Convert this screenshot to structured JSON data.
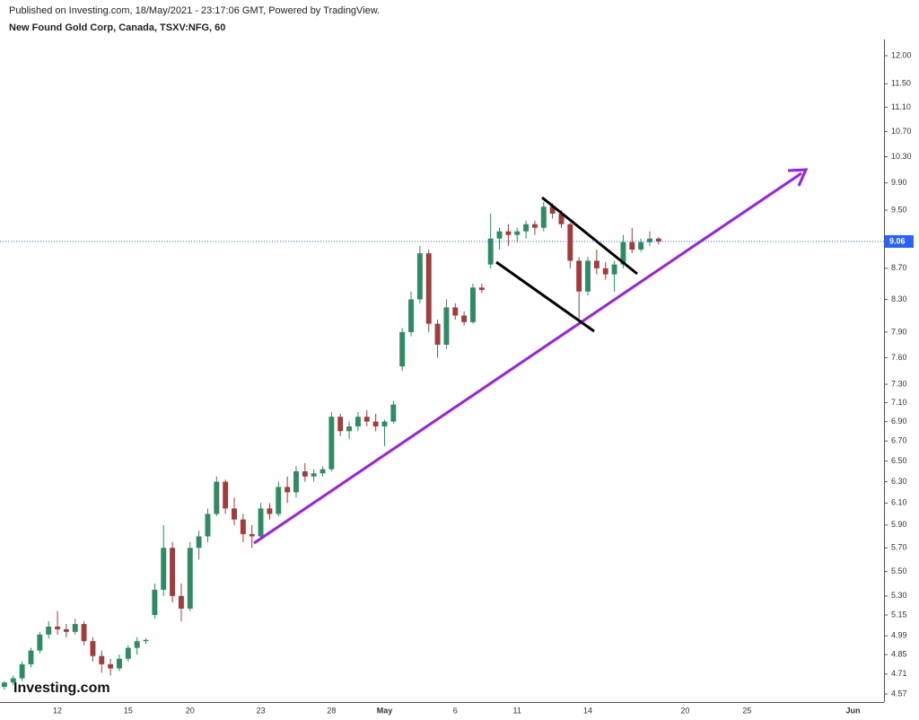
{
  "header": {
    "published": "Published on Investing.com, 18/May/2021 - 23:17:06 GMT, Powered by TradingView.",
    "symbol": "New Found Gold Corp, Canada, TSXV:NFG, 60"
  },
  "chart_data": {
    "type": "candlestick",
    "log_scale": true,
    "watermark": "Investing.com",
    "up_color": "#2e8b62",
    "down_color": "#a33b3b",
    "last_price": 9.06,
    "last_price_color": "#2962ff",
    "categories": [
      null,
      null,
      null,
      null,
      null,
      null,
      "12",
      null,
      null,
      null,
      null,
      null,
      null,
      null,
      "15",
      null,
      null,
      null,
      null,
      null,
      null,
      "20",
      null,
      null,
      null,
      null,
      null,
      null,
      null,
      "23",
      null,
      null,
      null,
      null,
      null,
      null,
      null,
      "28",
      null,
      null,
      null,
      null,
      null,
      "May",
      null,
      null,
      null,
      null,
      null,
      null,
      null,
      "6",
      null,
      null,
      null,
      null,
      null,
      null,
      "11",
      null,
      null,
      null,
      null,
      null,
      null,
      null,
      "14",
      null,
      null,
      null,
      null,
      null,
      null,
      null,
      null,
      null,
      null,
      "20",
      null,
      null,
      null,
      null,
      null,
      null,
      "25",
      null,
      null,
      null,
      null,
      null,
      null,
      null,
      null,
      null,
      null,
      null,
      "Jun",
      null,
      null,
      null
    ],
    "open": [
      4.62,
      4.65,
      4.68,
      4.78,
      4.88,
      5.0,
      5.06,
      5.04,
      5.02,
      5.08,
      4.95,
      4.84,
      4.78,
      4.75,
      4.82,
      4.9,
      4.95,
      5.15,
      5.35,
      5.7,
      5.3,
      5.2,
      5.7,
      5.8,
      6.0,
      6.3,
      6.05,
      5.95,
      5.82,
      5.8,
      6.05,
      6.0,
      6.25,
      6.2,
      6.4,
      6.35,
      6.38,
      6.42,
      6.95,
      6.8,
      6.85,
      6.95,
      6.9,
      6.85,
      6.9,
      7.5,
      7.9,
      8.3,
      8.9,
      8.0,
      7.75,
      8.2,
      8.1,
      8.02,
      8.45,
      8.75,
      9.1,
      9.2,
      9.15,
      9.2,
      9.3,
      9.25,
      9.55,
      9.45,
      9.3,
      8.8,
      8.4,
      8.8,
      8.7,
      8.62,
      8.75,
      9.05,
      8.95,
      9.05,
      9.1,
      null,
      null,
      null,
      null,
      null,
      null,
      null,
      null,
      null,
      null,
      null,
      null,
      null,
      null,
      null,
      null,
      null,
      null,
      null,
      null,
      null,
      null,
      null,
      null,
      null
    ],
    "high": [
      4.66,
      4.7,
      4.8,
      4.9,
      5.02,
      5.1,
      5.18,
      5.08,
      5.12,
      5.1,
      4.98,
      4.88,
      4.82,
      4.85,
      4.92,
      4.98,
      4.97,
      5.4,
      5.9,
      5.75,
      5.4,
      5.75,
      5.85,
      6.05,
      6.35,
      6.32,
      6.15,
      6.0,
      5.9,
      6.1,
      6.1,
      6.3,
      6.35,
      6.45,
      6.48,
      6.42,
      6.45,
      7.0,
      6.98,
      6.9,
      7.0,
      7.02,
      6.98,
      6.92,
      7.12,
      7.95,
      8.4,
      9.0,
      8.95,
      8.05,
      8.3,
      8.25,
      8.15,
      8.5,
      8.5,
      9.45,
      9.25,
      9.3,
      9.25,
      9.35,
      9.35,
      9.62,
      9.6,
      9.5,
      9.32,
      8.85,
      8.85,
      8.95,
      8.78,
      8.8,
      9.15,
      9.25,
      9.1,
      9.2,
      9.12,
      null,
      null,
      null,
      null,
      null,
      null,
      null,
      null,
      null,
      null,
      null,
      null,
      null,
      null,
      null,
      null,
      null,
      null,
      null,
      null,
      null,
      null,
      null,
      null,
      null
    ],
    "low": [
      4.6,
      4.63,
      4.66,
      4.76,
      4.86,
      4.97,
      5.0,
      4.98,
      5.0,
      4.92,
      4.8,
      4.72,
      4.7,
      4.73,
      4.8,
      4.85,
      4.93,
      5.12,
      5.3,
      5.25,
      5.1,
      5.18,
      5.6,
      5.75,
      5.98,
      6.0,
      5.9,
      5.75,
      5.7,
      5.78,
      5.95,
      5.98,
      6.1,
      6.15,
      6.3,
      6.3,
      6.35,
      6.4,
      6.75,
      6.72,
      6.8,
      6.85,
      6.8,
      6.65,
      6.88,
      7.45,
      7.85,
      8.25,
      7.9,
      7.6,
      7.7,
      8.05,
      7.98,
      8.0,
      8.38,
      8.7,
      8.95,
      9.0,
      9.05,
      9.1,
      9.15,
      9.2,
      9.38,
      9.25,
      8.7,
      8.05,
      8.35,
      8.62,
      8.55,
      8.4,
      8.7,
      8.9,
      8.92,
      9.0,
      9.02,
      null,
      null,
      null,
      null,
      null,
      null,
      null,
      null,
      null,
      null,
      null,
      null,
      null,
      null,
      null,
      null,
      null,
      null,
      null,
      null,
      null,
      null,
      null,
      null,
      null
    ],
    "close": [
      4.65,
      4.68,
      4.78,
      4.88,
      5.0,
      5.06,
      5.04,
      5.02,
      5.08,
      4.95,
      4.84,
      4.78,
      4.75,
      4.82,
      4.9,
      4.95,
      4.96,
      5.35,
      5.7,
      5.3,
      5.2,
      5.7,
      5.8,
      6.0,
      6.3,
      6.05,
      5.95,
      5.82,
      5.8,
      6.05,
      6.0,
      6.25,
      6.2,
      6.4,
      6.35,
      6.38,
      6.42,
      6.95,
      6.8,
      6.85,
      6.95,
      6.9,
      6.85,
      6.9,
      7.08,
      7.9,
      8.3,
      8.9,
      8.0,
      7.75,
      8.2,
      8.1,
      8.02,
      8.45,
      8.42,
      9.1,
      9.2,
      9.15,
      9.2,
      9.3,
      9.25,
      9.55,
      9.45,
      9.3,
      8.8,
      8.4,
      8.8,
      8.7,
      8.62,
      8.75,
      9.05,
      8.95,
      9.05,
      9.1,
      9.06,
      null,
      null,
      null,
      null,
      null,
      null,
      null,
      null,
      null,
      null,
      null,
      null,
      null,
      null,
      null,
      null,
      null,
      null,
      null,
      null,
      null,
      null,
      null,
      null,
      null
    ],
    "ylim": [
      4.57,
      12.0
    ],
    "yticks": [
      4.57,
      4.71,
      4.85,
      4.99,
      5.15,
      {
        "value": 5.3,
        "label": "5.30"
      },
      {
        "value": 5.5,
        "label": "5.50"
      },
      {
        "value": 5.7,
        "label": "5.70"
      },
      {
        "value": 5.9,
        "label": "5.90"
      },
      {
        "value": 6.1,
        "label": "6.10"
      },
      {
        "value": 6.3,
        "label": "6.30"
      },
      {
        "value": 6.5,
        "label": "6.50"
      },
      {
        "value": 6.7,
        "label": "6.70"
      },
      {
        "value": 6.9,
        "label": "6.90"
      },
      {
        "value": 7.1,
        "label": "7.10"
      },
      {
        "value": 7.3,
        "label": "7.30"
      },
      {
        "value": 7.6,
        "label": "7.60"
      },
      {
        "value": 7.9,
        "label": "7.90"
      },
      {
        "value": 8.3,
        "label": "8.30"
      },
      {
        "value": 8.7,
        "label": "8.70"
      },
      {
        "value": 9.5,
        "label": "9.50"
      },
      {
        "value": 9.9,
        "label": "9.90"
      },
      {
        "value": 10.3,
        "label": "10.30"
      },
      {
        "value": 10.7,
        "label": "10.70"
      },
      {
        "value": 11.1,
        "label": "11.10"
      },
      {
        "value": 11.5,
        "label": "11.50"
      },
      {
        "value": 12,
        "label": "12.00"
      }
    ]
  }
}
